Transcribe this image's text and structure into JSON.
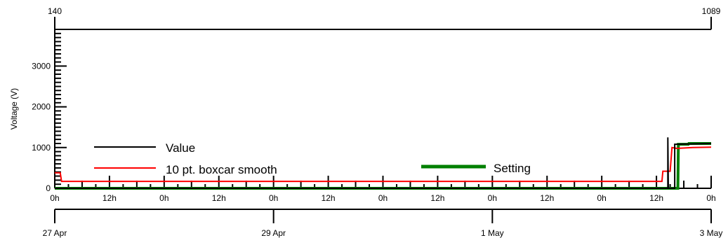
{
  "chart_data": {
    "type": "line",
    "ylabel": "Voltage (V)",
    "ylim": [
      0,
      3900
    ],
    "yticks": [
      "0",
      "1000",
      "2000",
      "3000"
    ],
    "ytick_values": [
      0,
      1000,
      2000,
      3000
    ],
    "top_axis": {
      "labels": [
        "140",
        "1089"
      ],
      "range": [
        140,
        1089
      ]
    },
    "x_time_labels": [
      "0h",
      "12h",
      "0h",
      "12h",
      "0h",
      "12h",
      "0h",
      "12h",
      "0h",
      "12h",
      "0h",
      "12h",
      "0h"
    ],
    "x_date_labels": [
      "27 Apr",
      "29 Apr",
      "1 May",
      "3 May"
    ],
    "xlim_hours": [
      0,
      144
    ],
    "grid": false,
    "series": [
      {
        "name": "Value",
        "color": "#000000",
        "points": [
          [
            0,
            0
          ],
          [
            134.5,
            0
          ],
          [
            134.5,
            1250
          ],
          [
            134.6,
            0
          ],
          [
            136,
            0
          ],
          [
            136,
            1080
          ],
          [
            144,
            1100
          ]
        ]
      },
      {
        "name": "10 pt. boxcar smooth",
        "color": "#ff0000",
        "points": [
          [
            0,
            380
          ],
          [
            1.2,
            380
          ],
          [
            1.5,
            170
          ],
          [
            133.2,
            170
          ],
          [
            133.4,
            420
          ],
          [
            135,
            420
          ],
          [
            135.4,
            1000
          ],
          [
            136.5,
            980
          ],
          [
            140,
            1000
          ],
          [
            144,
            1010
          ]
        ]
      },
      {
        "name": "Setting",
        "color": "#008000",
        "points": [
          [
            0,
            0
          ],
          [
            136.7,
            0
          ],
          [
            136.8,
            1080
          ],
          [
            139,
            1080
          ],
          [
            139.1,
            1100
          ],
          [
            144,
            1100
          ]
        ]
      }
    ],
    "legend": [
      {
        "label": "Value",
        "color": "#000000"
      },
      {
        "label": "10 pt. boxcar smooth",
        "color": "#ff0000"
      },
      {
        "label": "Setting",
        "color": "#008000"
      }
    ]
  }
}
